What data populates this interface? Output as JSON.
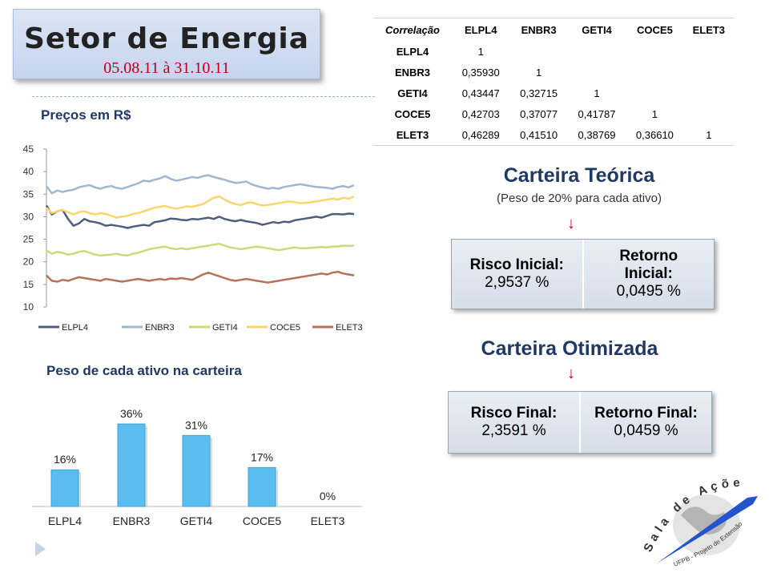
{
  "header": {
    "title": "Setor de Energia",
    "subtitle": "05.08.11 à 31.10.11"
  },
  "correlation": {
    "label": "Correlação",
    "columns": [
      "ELPL4",
      "ENBR3",
      "GETI4",
      "COCE5",
      "ELET3"
    ],
    "rows": [
      {
        "name": "ELPL4",
        "values": [
          "1",
          "",
          "",
          "",
          ""
        ]
      },
      {
        "name": "ENBR3",
        "values": [
          "0,35930",
          "1",
          "",
          "",
          ""
        ]
      },
      {
        "name": "GETI4",
        "values": [
          "0,43447",
          "0,32715",
          "1",
          "",
          ""
        ]
      },
      {
        "name": "COCE5",
        "values": [
          "0,42703",
          "0,37077",
          "0,41787",
          "1",
          ""
        ]
      },
      {
        "name": "ELET3",
        "values": [
          "0,46289",
          "0,41510",
          "0,38769",
          "0,36610",
          "1"
        ]
      }
    ]
  },
  "prices": {
    "title": "Preços em R$"
  },
  "weights": {
    "title": "Peso de cada ativo na carteira"
  },
  "theoretical": {
    "title": "Carteira  Teórica",
    "subtitle": "(Peso de 20% para cada ativo)",
    "arrow": "↓",
    "risk_label": "Risco Inicial:",
    "risk_value": "2,9537 %",
    "return_label": "Retorno Inicial:",
    "return_value": "0,0495 %"
  },
  "optimized": {
    "title": "Carteira  Otimizada",
    "arrow": "↓",
    "risk_label": "Risco Final:",
    "risk_value": "2,3591 %",
    "return_label": "Retorno Final:",
    "return_value": "0,0459 %"
  },
  "logo": {
    "text_top": "Sala de Ações",
    "text_bottom": "UFPB - Projeto de Extensão"
  },
  "colors": {
    "ELPL4": "#4f5d7e",
    "ENBR3": "#9fb7cf",
    "GETI4": "#cfd87a",
    "COCE5": "#f7d66b",
    "ELET3": "#b7705a",
    "bar": "#5bbcf0",
    "title_red": "#c0001a",
    "navy": "#1f3864"
  },
  "chart_data": [
    {
      "type": "line",
      "title": "Preços em R$",
      "ylim": [
        10,
        45
      ],
      "yticks": [
        10,
        15,
        20,
        25,
        30,
        35,
        40,
        45
      ],
      "legend_position": "bottom",
      "series": [
        {
          "name": "ELPL4",
          "values": [
            32.5,
            30.5,
            31.2,
            31.5,
            29.5,
            28,
            28.5,
            29.5,
            29,
            28.8,
            28.5,
            28,
            28.2,
            28,
            27.8,
            27.5,
            27.8,
            28,
            28.2,
            28,
            28.8,
            29,
            29.2,
            29.6,
            29.5,
            29.3,
            29.2,
            29.5,
            29.4,
            29.6,
            29.8,
            29.5,
            30,
            29.5,
            29.2,
            29,
            29.3,
            29,
            28.8,
            28.6,
            28.2,
            28.5,
            28.8,
            28.6,
            28.9,
            28.8,
            29.2,
            29.4,
            29.6,
            29.8,
            30,
            29.8,
            30.2,
            30.6,
            30.6,
            30.5,
            30.7,
            30.6
          ]
        },
        {
          "name": "ENBR3",
          "values": [
            36.8,
            35.2,
            35.8,
            35.5,
            35.8,
            36,
            36.5,
            36.8,
            37,
            36.5,
            36.2,
            36.6,
            36.8,
            36.4,
            36.2,
            36.6,
            37,
            37.4,
            38,
            37.8,
            38.2,
            38.5,
            39,
            38.4,
            38,
            38.2,
            38.5,
            38.8,
            38.6,
            39,
            39.2,
            38.8,
            38.5,
            38.2,
            37.8,
            37.5,
            37.6,
            37.8,
            37.2,
            36.8,
            36.5,
            36.2,
            36.4,
            36.2,
            36.6,
            36.8,
            37,
            37.2,
            37,
            36.8,
            36.6,
            36.5,
            36.4,
            36.2,
            36.6,
            36.8,
            36.5,
            37
          ]
        },
        {
          "name": "GETI4",
          "values": [
            22.5,
            21.8,
            22.2,
            22,
            21.6,
            21.8,
            22.2,
            22.4,
            22,
            21.6,
            21.4,
            21.5,
            21.6,
            21.8,
            21.5,
            21.4,
            21.8,
            22,
            22.4,
            22.8,
            23,
            23.2,
            23.4,
            23,
            22.8,
            23,
            22.8,
            23,
            23.2,
            23.4,
            23.6,
            23.8,
            24,
            23.6,
            23.2,
            23,
            22.8,
            23,
            23.2,
            23.4,
            23.2,
            23,
            22.8,
            22.6,
            22.8,
            23,
            23.2,
            23,
            23,
            23.1,
            23.2,
            23.3,
            23.2,
            23.4,
            23.4,
            23.6,
            23.5,
            23.6
          ]
        },
        {
          "name": "COCE5",
          "values": [
            32,
            30.8,
            31.2,
            31.5,
            31,
            30.5,
            31,
            31.2,
            30.8,
            30.5,
            30.8,
            30.6,
            30.2,
            29.8,
            30,
            30.2,
            30.6,
            30.8,
            31.2,
            31.6,
            32,
            32.2,
            32.4,
            32,
            31.8,
            32,
            32.3,
            32.2,
            32.5,
            32.8,
            33.5,
            34.2,
            34.5,
            33.8,
            33.2,
            32.8,
            32.6,
            33,
            33.2,
            32.8,
            32.5,
            32.6,
            32.8,
            33,
            33.2,
            33.4,
            33.2,
            33,
            33.1,
            33.2,
            33.4,
            33.6,
            33.8,
            34,
            33.8,
            34.2,
            34,
            34.5
          ]
        },
        {
          "name": "ELET3",
          "values": [
            17,
            15.8,
            15.6,
            16,
            15.8,
            16.2,
            16.6,
            16.4,
            16.2,
            16,
            15.8,
            16.2,
            16,
            15.8,
            15.6,
            15.8,
            16,
            16.2,
            16,
            15.8,
            16,
            16.2,
            16,
            16.3,
            16.2,
            16.4,
            16.2,
            16,
            16.6,
            17.2,
            17.6,
            17.2,
            16.8,
            16.4,
            16,
            15.8,
            16,
            16.2,
            16,
            15.8,
            15.6,
            15.4,
            15.6,
            15.8,
            16,
            16.2,
            16.4,
            16.6,
            16.8,
            17,
            17.2,
            17.4,
            17.2,
            17.6,
            17.8,
            17.4,
            17.2,
            17
          ]
        }
      ]
    },
    {
      "type": "bar",
      "title": "Peso de cada ativo na carteira",
      "categories": [
        "ELPL4",
        "ENBR3",
        "GETI4",
        "COCE5",
        "ELET3"
      ],
      "values": [
        16,
        36,
        31,
        17,
        0
      ],
      "data_labels": [
        "16%",
        "36%",
        "31%",
        "17%",
        "0%"
      ],
      "ylim": [
        0,
        40
      ]
    }
  ]
}
